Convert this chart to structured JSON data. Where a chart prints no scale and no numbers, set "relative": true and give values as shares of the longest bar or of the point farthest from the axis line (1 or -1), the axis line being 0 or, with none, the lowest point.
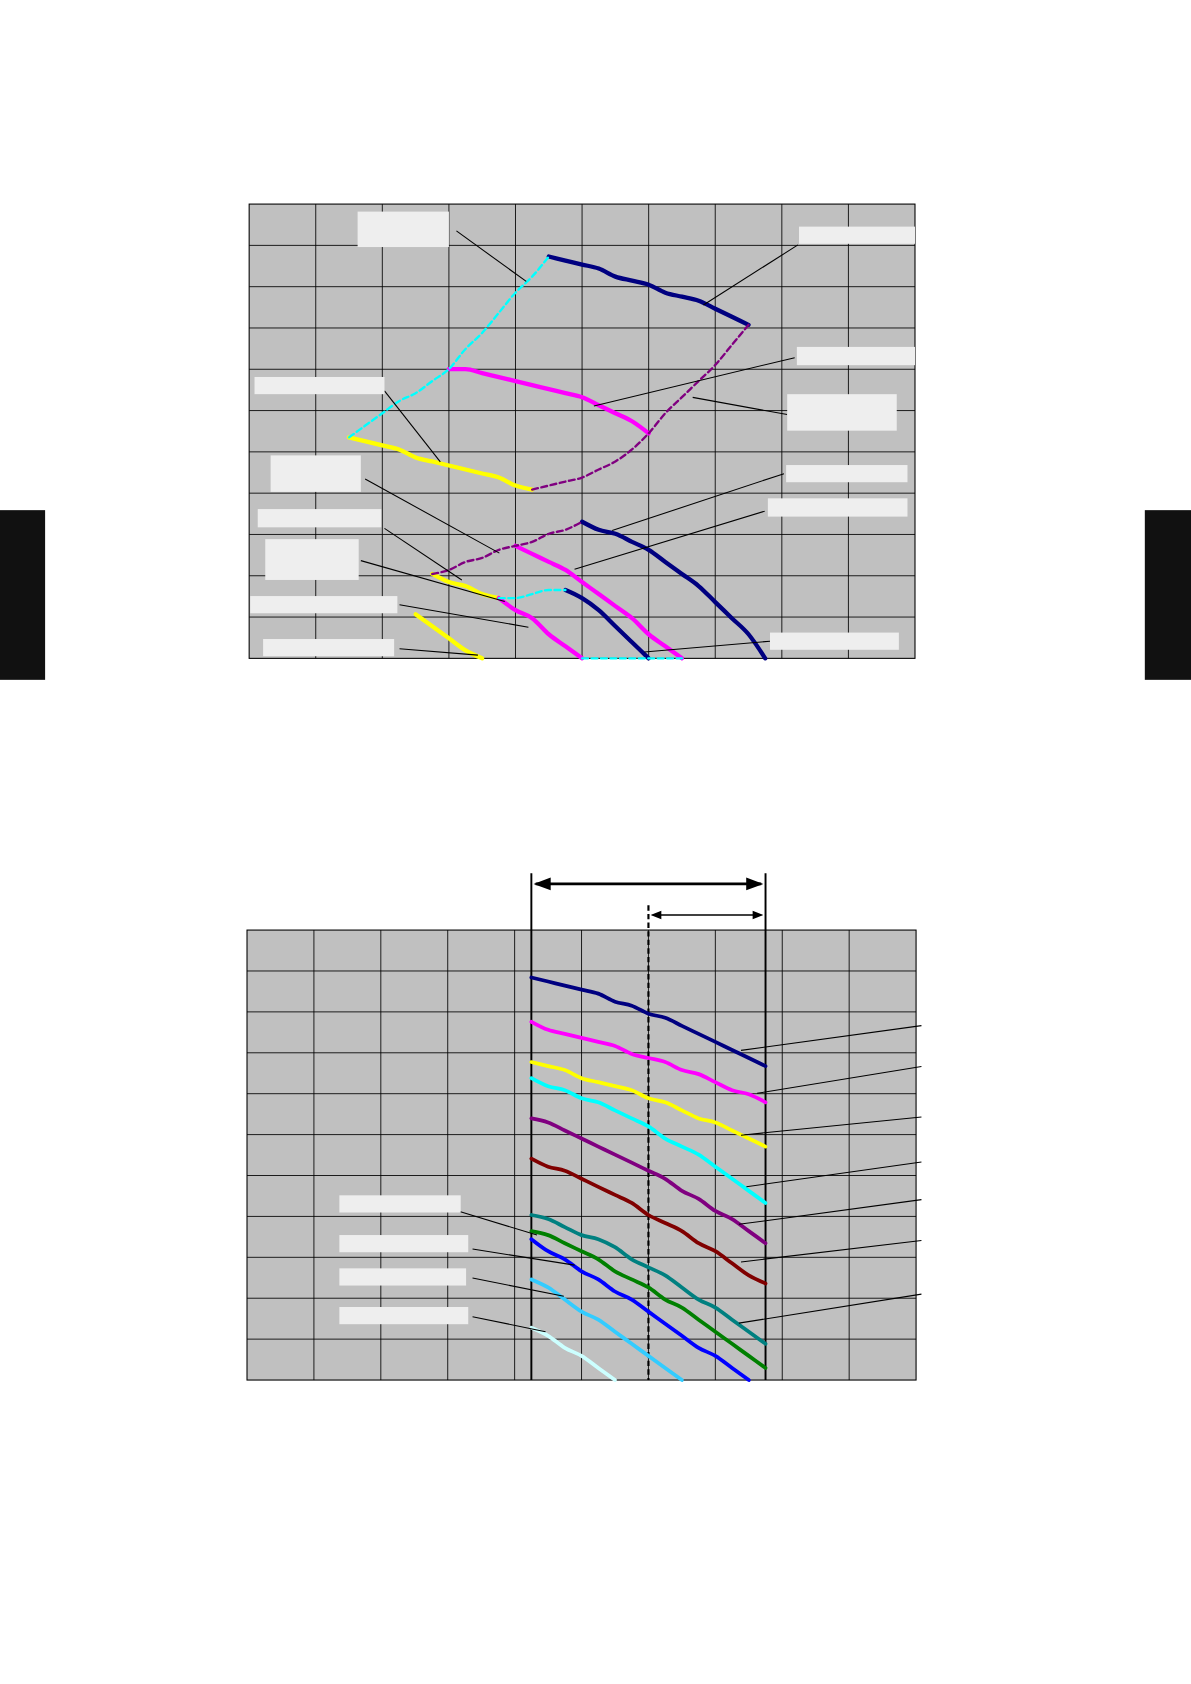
{
  "chart_data": [
    {
      "type": "line",
      "relative": true,
      "grid": true,
      "categories": [
        null,
        null,
        null,
        null,
        null,
        null,
        null,
        null,
        null,
        null,
        null,
        null,
        null,
        null,
        null,
        null,
        null,
        null,
        null,
        null,
        null,
        null,
        null,
        null,
        null,
        null,
        null,
        null,
        null,
        null,
        null,
        null,
        null,
        null,
        null,
        null,
        null,
        null,
        null,
        null,
        null
      ],
      "series": [
        {
          "color": "#000080",
          "line_style": "solid",
          "values": [
            null,
            null,
            null,
            null,
            null,
            null,
            null,
            null,
            null,
            null,
            null,
            null,
            null,
            null,
            null,
            null,
            null,
            null,
            1,
            0.99,
            0.98,
            0.97,
            0.95,
            0.94,
            0.93,
            0.91,
            0.9,
            0.89,
            0.87,
            0.85,
            0.83,
            null,
            null,
            null,
            null,
            null,
            null,
            null,
            null,
            null,
            null
          ]
        },
        {
          "color": "#ff00ff",
          "line_style": "solid",
          "values": [
            null,
            null,
            null,
            null,
            null,
            null,
            null,
            null,
            null,
            null,
            null,
            null,
            0.72,
            0.72,
            0.71,
            0.7,
            0.69,
            0.68,
            0.67,
            0.66,
            0.65,
            0.63,
            0.61,
            0.59,
            0.56,
            null,
            null,
            null,
            null,
            null,
            null,
            null,
            null,
            null,
            null,
            null,
            null,
            null,
            null,
            null,
            null
          ]
        },
        {
          "color": "#ffff00",
          "line_style": "solid",
          "values": [
            null,
            null,
            null,
            null,
            null,
            null,
            0.55,
            0.54,
            0.53,
            0.52,
            0.5,
            0.49,
            0.48,
            0.47,
            0.46,
            0.45,
            0.43,
            0.42,
            null,
            null,
            null,
            null,
            null,
            null,
            null,
            null,
            null,
            null,
            null,
            null,
            null,
            null,
            null,
            null,
            null,
            null,
            null,
            null,
            null,
            null,
            null
          ]
        },
        {
          "color": "#00ffff",
          "line_style": "dashed",
          "values": [
            null,
            null,
            null,
            null,
            null,
            null,
            0.55,
            0.58,
            0.61,
            0.64,
            0.66,
            0.69,
            0.72,
            0.77,
            0.81,
            0.86,
            0.91,
            0.95,
            1,
            null,
            null,
            null,
            null,
            null,
            null,
            null,
            null,
            null,
            null,
            null,
            null,
            null,
            null,
            null,
            null,
            null,
            null,
            null,
            null,
            null,
            null
          ]
        },
        {
          "color": "#800080",
          "line_style": "dashed",
          "values": [
            null,
            null,
            null,
            null,
            null,
            null,
            null,
            null,
            null,
            null,
            null,
            null,
            null,
            null,
            null,
            null,
            null,
            0.42,
            0.43,
            0.44,
            0.45,
            0.47,
            0.49,
            0.52,
            0.56,
            0.61,
            0.65,
            0.69,
            0.73,
            0.78,
            0.83,
            null,
            null,
            null,
            null,
            null,
            null,
            null,
            null,
            null,
            null
          ]
        },
        {
          "color": "#000080",
          "line_style": "solid",
          "values": [
            null,
            null,
            null,
            null,
            null,
            null,
            null,
            null,
            null,
            null,
            null,
            null,
            null,
            null,
            null,
            null,
            null,
            null,
            null,
            null,
            0.34,
            0.32,
            0.31,
            0.29,
            0.27,
            0.24,
            0.21,
            0.18,
            0.14,
            0.1,
            0.06,
            0,
            null,
            null,
            null,
            null,
            null,
            null,
            null,
            null,
            null
          ]
        },
        {
          "color": "#ff00ff",
          "line_style": "solid",
          "values": [
            null,
            null,
            null,
            null,
            null,
            null,
            null,
            null,
            null,
            null,
            null,
            null,
            null,
            null,
            null,
            null,
            0.28,
            0.26,
            0.24,
            0.22,
            0.19,
            0.16,
            0.13,
            0.1,
            0.06,
            0.03,
            0,
            null,
            null,
            null,
            null,
            null,
            null,
            null,
            null,
            null,
            null,
            null,
            null,
            null,
            null
          ]
        },
        {
          "color": "#ffff00",
          "line_style": "solid",
          "values": [
            null,
            null,
            null,
            null,
            null,
            null,
            null,
            null,
            null,
            null,
            null,
            0.21,
            0.19,
            0.18,
            0.16,
            0.15,
            null,
            null,
            null,
            null,
            null,
            null,
            null,
            null,
            null,
            null,
            null,
            null,
            null,
            null,
            null,
            null,
            null,
            null,
            null,
            null,
            null,
            null,
            null,
            null,
            null
          ]
        },
        {
          "color": "#800080",
          "line_style": "dashed",
          "values": [
            null,
            null,
            null,
            null,
            null,
            null,
            null,
            null,
            null,
            null,
            null,
            0.21,
            0.22,
            0.24,
            0.25,
            0.27,
            0.28,
            0.29,
            0.31,
            0.32,
            0.34,
            null,
            null,
            null,
            null,
            null,
            null,
            null,
            null,
            null,
            null,
            null,
            null,
            null,
            null,
            null,
            null,
            null,
            null,
            null,
            null
          ]
        },
        {
          "color": "#000080",
          "line_style": "solid",
          "values": [
            null,
            null,
            null,
            null,
            null,
            null,
            null,
            null,
            null,
            null,
            null,
            null,
            null,
            null,
            null,
            null,
            null,
            null,
            null,
            0.17,
            0.15,
            0.12,
            0.08,
            0.04,
            0,
            null,
            null,
            null,
            null,
            null,
            null,
            null,
            null,
            null,
            null,
            null,
            null,
            null,
            null,
            null,
            null
          ]
        },
        {
          "color": "#ff00ff",
          "line_style": "solid",
          "values": [
            null,
            null,
            null,
            null,
            null,
            null,
            null,
            null,
            null,
            null,
            null,
            null,
            null,
            null,
            null,
            0.15,
            0.12,
            0.1,
            0.06,
            0.03,
            0,
            null,
            null,
            null,
            null,
            null,
            null,
            null,
            null,
            null,
            null,
            null,
            null,
            null,
            null,
            null,
            null,
            null,
            null,
            null,
            null
          ]
        },
        {
          "color": "#00ffff",
          "line_style": "dashed",
          "values": [
            null,
            null,
            null,
            null,
            null,
            null,
            null,
            null,
            null,
            null,
            null,
            null,
            null,
            null,
            null,
            0.15,
            0.15,
            0.16,
            0.17,
            0.17,
            null,
            null,
            null,
            null,
            null,
            null,
            null,
            null,
            null,
            null,
            null,
            null,
            null,
            null,
            null,
            null,
            null,
            null,
            null,
            null,
            null
          ]
        },
        {
          "color": "#ffff00",
          "line_style": "solid",
          "values": [
            null,
            null,
            null,
            null,
            null,
            null,
            null,
            null,
            null,
            null,
            0.11,
            0.08,
            0.05,
            0.02,
            0,
            null,
            null,
            null,
            null,
            null,
            null,
            null,
            null,
            null,
            null,
            null,
            null,
            null,
            null,
            null,
            null,
            null,
            null,
            null,
            null,
            null,
            null,
            null,
            null,
            null,
            null
          ]
        },
        {
          "color": "#00ffff",
          "line_style": "dashed",
          "values": [
            null,
            null,
            null,
            null,
            null,
            null,
            null,
            null,
            null,
            null,
            null,
            null,
            null,
            null,
            null,
            null,
            null,
            null,
            null,
            null,
            0,
            0,
            0,
            0,
            0,
            0,
            0,
            null,
            null,
            null,
            null,
            null,
            null,
            null,
            null,
            null,
            null,
            null,
            null,
            null,
            null
          ]
        }
      ]
    },
    {
      "type": "line",
      "relative": true,
      "grid": true,
      "categories": [
        null,
        null,
        null,
        null,
        null,
        null,
        null,
        null,
        null,
        null,
        null,
        null,
        null,
        null,
        null,
        null,
        null,
        null,
        null,
        null,
        null,
        null,
        null,
        null,
        null,
        null,
        null,
        null,
        null,
        null,
        null,
        null,
        null,
        null,
        null,
        null,
        null,
        null,
        null,
        null,
        null
      ],
      "series": [
        {
          "color": "#000080",
          "line_style": "solid",
          "values": [
            null,
            null,
            null,
            null,
            null,
            null,
            null,
            null,
            null,
            null,
            null,
            null,
            null,
            null,
            null,
            null,
            null,
            1,
            0.99,
            0.98,
            0.97,
            0.96,
            0.94,
            0.93,
            0.91,
            0.9,
            0.88,
            0.86,
            0.84,
            0.82,
            0.8,
            0.78,
            null,
            null,
            null,
            null,
            null,
            null,
            null,
            null,
            null
          ]
        },
        {
          "color": "#ff00ff",
          "line_style": "solid",
          "values": [
            null,
            null,
            null,
            null,
            null,
            null,
            null,
            null,
            null,
            null,
            null,
            null,
            null,
            null,
            null,
            null,
            null,
            0.89,
            0.87,
            0.86,
            0.85,
            0.84,
            0.83,
            0.81,
            0.8,
            0.79,
            0.77,
            0.76,
            0.74,
            0.72,
            0.71,
            0.69,
            null,
            null,
            null,
            null,
            null,
            null,
            null,
            null,
            null
          ]
        },
        {
          "color": "#ffff00",
          "line_style": "solid",
          "values": [
            null,
            null,
            null,
            null,
            null,
            null,
            null,
            null,
            null,
            null,
            null,
            null,
            null,
            null,
            null,
            null,
            null,
            0.79,
            0.78,
            0.77,
            0.75,
            0.74,
            0.73,
            0.72,
            0.7,
            0.69,
            0.67,
            0.65,
            0.64,
            0.62,
            0.6,
            0.58,
            null,
            null,
            null,
            null,
            null,
            null,
            null,
            null,
            null
          ]
        },
        {
          "color": "#00ffff",
          "line_style": "solid",
          "values": [
            null,
            null,
            null,
            null,
            null,
            null,
            null,
            null,
            null,
            null,
            null,
            null,
            null,
            null,
            null,
            null,
            null,
            0.75,
            0.73,
            0.72,
            0.7,
            0.69,
            0.67,
            0.65,
            0.63,
            0.6,
            0.58,
            0.56,
            0.53,
            0.5,
            0.47,
            0.44,
            null,
            null,
            null,
            null,
            null,
            null,
            null,
            null,
            null
          ]
        },
        {
          "color": "#800080",
          "line_style": "solid",
          "values": [
            null,
            null,
            null,
            null,
            null,
            null,
            null,
            null,
            null,
            null,
            null,
            null,
            null,
            null,
            null,
            null,
            null,
            0.65,
            0.64,
            0.62,
            0.6,
            0.58,
            0.56,
            0.54,
            0.52,
            0.5,
            0.47,
            0.45,
            0.42,
            0.4,
            0.37,
            0.34,
            null,
            null,
            null,
            null,
            null,
            null,
            null,
            null,
            null
          ]
        },
        {
          "color": "#800000",
          "line_style": "solid",
          "values": [
            null,
            null,
            null,
            null,
            null,
            null,
            null,
            null,
            null,
            null,
            null,
            null,
            null,
            null,
            null,
            null,
            null,
            0.55,
            0.53,
            0.52,
            0.5,
            0.48,
            0.46,
            0.44,
            0.41,
            0.39,
            0.37,
            0.34,
            0.32,
            0.29,
            0.26,
            0.24,
            null,
            null,
            null,
            null,
            null,
            null,
            null,
            null,
            null
          ]
        },
        {
          "color": "#008080",
          "line_style": "solid",
          "values": [
            null,
            null,
            null,
            null,
            null,
            null,
            null,
            null,
            null,
            null,
            null,
            null,
            null,
            null,
            null,
            null,
            null,
            0.41,
            0.4,
            0.38,
            0.36,
            0.35,
            0.33,
            0.3,
            0.28,
            0.26,
            0.23,
            0.2,
            0.18,
            0.15,
            0.12,
            0.09,
            null,
            null,
            null,
            null,
            null,
            null,
            null,
            null,
            null
          ]
        },
        {
          "color": "#008000",
          "line_style": "solid",
          "values": [
            null,
            null,
            null,
            null,
            null,
            null,
            null,
            null,
            null,
            null,
            null,
            null,
            null,
            null,
            null,
            null,
            null,
            0.37,
            0.36,
            0.34,
            0.32,
            0.3,
            0.27,
            0.25,
            0.23,
            0.2,
            0.18,
            0.15,
            0.12,
            0.09,
            0.06,
            0.03,
            null,
            null,
            null,
            null,
            null,
            null,
            null,
            null,
            null
          ]
        },
        {
          "color": "#0000ff",
          "line_style": "solid",
          "values": [
            null,
            null,
            null,
            null,
            null,
            null,
            null,
            null,
            null,
            null,
            null,
            null,
            null,
            null,
            null,
            null,
            null,
            0.35,
            0.32,
            0.3,
            0.27,
            0.25,
            0.22,
            0.2,
            0.17,
            0.14,
            0.11,
            0.08,
            0.06,
            0.03,
            0,
            null,
            null,
            null,
            null,
            null,
            null,
            null,
            null,
            null,
            null
          ]
        },
        {
          "color": "#33ccff",
          "line_style": "solid",
          "values": [
            null,
            null,
            null,
            null,
            null,
            null,
            null,
            null,
            null,
            null,
            null,
            null,
            null,
            null,
            null,
            null,
            null,
            0.25,
            0.23,
            0.2,
            0.17,
            0.15,
            0.12,
            0.09,
            0.06,
            0.03,
            0,
            null,
            null,
            null,
            null,
            null,
            null,
            null,
            null,
            null,
            null,
            null,
            null,
            null,
            null
          ]
        },
        {
          "color": "#ccffff",
          "line_style": "solid",
          "values": [
            null,
            null,
            null,
            null,
            null,
            null,
            null,
            null,
            null,
            null,
            null,
            null,
            null,
            null,
            null,
            null,
            null,
            0.13,
            0.11,
            0.08,
            0.06,
            0.03,
            0,
            null,
            null,
            null,
            null,
            null,
            null,
            null,
            null,
            null,
            null,
            null,
            null,
            null,
            null,
            null,
            null,
            null,
            null
          ]
        }
      ]
    }
  ]
}
